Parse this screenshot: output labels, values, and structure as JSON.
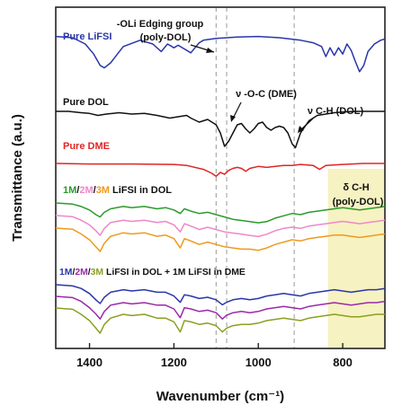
{
  "chart_data": {
    "type": "line",
    "xlabel": "Wavenumber (cm⁻¹)",
    "ylabel": "Transmittance (a.u.)",
    "xlim": [
      1480,
      700
    ],
    "xticks": [
      1400,
      1200,
      1000,
      800
    ],
    "x_reversed": true,
    "grid": false,
    "reference_lines_x": [
      1100,
      1075,
      915
    ],
    "highlight_region": {
      "x": [
        835,
        700
      ],
      "label": "δ C-H (poly-DOL)",
      "color": "#f6f2c2"
    },
    "labels": {
      "pure_lifsi": "Pure LiFSI",
      "pure_dol": "Pure DOL",
      "pure_dme": "Pure DME",
      "group_dol": {
        "c1": "1M",
        "s1": "/",
        "c2": "2M",
        "s2": "/",
        "c3": "3M",
        "rest": " LiFSI in DOL"
      },
      "group_mix": {
        "c1": "1M",
        "s1": "/",
        "c2": "2M",
        "s2": "/",
        "c3": "3M",
        "rest": " LiFSI in DOL + 1M LiFSI in DME"
      },
      "ann_oli_line1": "-OLi Edging group",
      "ann_oli_line2": "(poly-DOL)",
      "ann_voc": "ν -O-C (DME)",
      "ann_vch": "ν C-H (DOL)",
      "ann_dch_line1": "δ C-H",
      "ann_dch_line2": "(poly-DOL)"
    },
    "colors": {
      "pure_lifsi": "#2a36a8",
      "pure_dol": "#111111",
      "pure_dme": "#e02525",
      "m1_dol": "#2c9a2c",
      "m2_dol": "#ee88c8",
      "m3_dol": "#ee9a20",
      "m1_mix": "#2a36a8",
      "m2_mix": "#9a2aa8",
      "m3_mix": "#8aa020"
    },
    "series": [
      {
        "name": "Pure LiFSI",
        "key": "pure_lifsi",
        "baseline": 0.1,
        "x": [
          1480,
          1440,
          1410,
          1390,
          1375,
          1365,
          1350,
          1320,
          1280,
          1250,
          1230,
          1215,
          1200,
          1190,
          1160,
          1150,
          1140,
          1130,
          1100,
          1050,
          1000,
          950,
          900,
          870,
          850,
          840,
          830,
          820,
          810,
          800,
          790,
          780,
          770,
          760,
          750,
          740,
          725,
          710,
          700
        ],
        "y": [
          0,
          0.1,
          0.6,
          1.4,
          2.3,
          2.5,
          2.1,
          0.8,
          0.3,
          0.6,
          1.2,
          0.6,
          0.9,
          0.7,
          1.3,
          0.9,
          0.5,
          0.3,
          0.15,
          0.05,
          0,
          0.1,
          0.3,
          0.5,
          0.8,
          1.6,
          0.9,
          1.5,
          0.9,
          1.4,
          0.6,
          1.1,
          2.0,
          2.8,
          2.3,
          1.2,
          0.6,
          0.3,
          0.2
        ]
      },
      {
        "name": "Pure DOL",
        "key": "pure_dol",
        "baseline": 0,
        "x": [
          1480,
          1450,
          1420,
          1400,
          1380,
          1360,
          1330,
          1300,
          1270,
          1240,
          1210,
          1190,
          1170,
          1160,
          1140,
          1120,
          1100,
          1090,
          1080,
          1070,
          1060,
          1050,
          1040,
          1030,
          1020,
          1010,
          1000,
          990,
          980,
          970,
          960,
          950,
          940,
          930,
          920,
          912,
          900,
          880,
          860,
          840,
          820,
          800,
          780,
          760,
          740,
          720,
          700
        ],
        "y": [
          0,
          0,
          0.1,
          0.15,
          0.3,
          0.2,
          0.1,
          0.2,
          0.15,
          0.3,
          0.5,
          0.4,
          0.3,
          0.5,
          0.8,
          0.6,
          1.0,
          1.6,
          2.6,
          2.2,
          1.6,
          1.0,
          0.9,
          1.3,
          1.6,
          1.3,
          0.9,
          0.8,
          1.2,
          1.4,
          1.2,
          1.1,
          1.2,
          1.6,
          2.4,
          2.7,
          1.6,
          0.7,
          0.3,
          0.2,
          0.1,
          0.05,
          0.02,
          0,
          0,
          0,
          0
        ]
      },
      {
        "name": "Pure DME",
        "key": "pure_dme",
        "baseline": 0,
        "x": [
          1480,
          1400,
          1300,
          1200,
          1170,
          1130,
          1110,
          1100,
          1090,
          1080,
          1070,
          1060,
          1050,
          1040,
          1030,
          1020,
          1000,
          980,
          960,
          940,
          920,
          900,
          870,
          855,
          840,
          800,
          750,
          700
        ],
        "y": [
          0,
          0.05,
          0.05,
          0.1,
          0.2,
          0.6,
          1.0,
          1.3,
          0.9,
          1.1,
          0.7,
          0.5,
          0.4,
          0.5,
          0.8,
          0.5,
          0.3,
          0.4,
          0.3,
          0.2,
          0.2,
          0.1,
          0.2,
          0.6,
          0.2,
          0.1,
          0,
          0
        ]
      },
      {
        "name": "1M LiFSI in DOL",
        "key": "m1_dol",
        "baseline": 0,
        "x": [
          1480,
          1440,
          1420,
          1400,
          1385,
          1375,
          1365,
          1350,
          1320,
          1300,
          1270,
          1240,
          1220,
          1200,
          1185,
          1175,
          1160,
          1140,
          1120,
          1100,
          1080,
          1060,
          1040,
          1020,
          1000,
          980,
          960,
          940,
          920,
          900,
          880,
          860,
          840,
          820,
          800,
          780,
          760,
          740,
          720,
          700
        ],
        "y": [
          0,
          0.1,
          0.3,
          0.6,
          1.0,
          1.2,
          0.8,
          0.5,
          0.3,
          0.4,
          0.3,
          0.5,
          0.4,
          0.6,
          0.9,
          0.5,
          0.7,
          0.9,
          0.8,
          1.0,
          1.2,
          1.4,
          1.5,
          1.6,
          1.7,
          1.6,
          1.3,
          1.1,
          0.9,
          1.0,
          0.8,
          0.7,
          0.6,
          0.5,
          0.4,
          0.5,
          0.6,
          0.5,
          0.4,
          0.3
        ]
      },
      {
        "name": "2M LiFSI in DOL",
        "key": "m2_dol",
        "baseline": 0,
        "x": [
          1480,
          1440,
          1420,
          1400,
          1385,
          1375,
          1365,
          1350,
          1320,
          1300,
          1270,
          1240,
          1220,
          1200,
          1185,
          1175,
          1160,
          1140,
          1120,
          1100,
          1080,
          1060,
          1040,
          1020,
          1000,
          980,
          960,
          940,
          920,
          900,
          880,
          860,
          840,
          820,
          800,
          780,
          760,
          740,
          720,
          700
        ],
        "y": [
          0,
          0.1,
          0.4,
          0.8,
          1.3,
          1.7,
          1.1,
          0.6,
          0.4,
          0.5,
          0.4,
          0.6,
          0.5,
          0.8,
          1.4,
          0.7,
          0.9,
          1.2,
          1.0,
          1.2,
          1.4,
          1.5,
          1.6,
          1.7,
          1.8,
          1.6,
          1.3,
          1.1,
          1.0,
          1.1,
          0.9,
          0.8,
          0.7,
          0.6,
          0.5,
          0.6,
          0.7,
          0.6,
          0.5,
          0.4
        ]
      },
      {
        "name": "3M LiFSI in DOL",
        "key": "m3_dol",
        "baseline": 0,
        "x": [
          1480,
          1440,
          1420,
          1400,
          1385,
          1375,
          1365,
          1350,
          1320,
          1300,
          1270,
          1240,
          1220,
          1200,
          1185,
          1175,
          1160,
          1140,
          1120,
          1100,
          1080,
          1060,
          1040,
          1020,
          1000,
          980,
          960,
          940,
          920,
          900,
          880,
          860,
          840,
          820,
          800,
          780,
          760,
          740,
          720,
          700
        ],
        "y": [
          0,
          0.1,
          0.5,
          1.0,
          1.6,
          2.0,
          1.3,
          0.7,
          0.4,
          0.5,
          0.4,
          0.7,
          0.6,
          0.9,
          1.7,
          0.9,
          1.1,
          1.4,
          1.2,
          1.4,
          1.6,
          1.7,
          1.8,
          1.8,
          1.9,
          1.7,
          1.4,
          1.2,
          1.0,
          1.1,
          0.9,
          0.8,
          0.7,
          0.6,
          0.6,
          0.7,
          0.8,
          0.7,
          0.6,
          0.5
        ]
      },
      {
        "name": "1M LiFSI in DOL + 1M LiFSI in DME",
        "key": "m1_mix",
        "baseline": 0,
        "x": [
          1480,
          1440,
          1420,
          1400,
          1385,
          1375,
          1365,
          1350,
          1320,
          1300,
          1270,
          1240,
          1220,
          1200,
          1185,
          1175,
          1160,
          1140,
          1120,
          1100,
          1085,
          1075,
          1060,
          1040,
          1020,
          1000,
          980,
          960,
          940,
          920,
          900,
          880,
          860,
          840,
          820,
          800,
          780,
          760,
          740,
          720,
          700
        ],
        "y": [
          0,
          0.1,
          0.3,
          0.7,
          1.2,
          1.5,
          1.0,
          0.6,
          0.4,
          0.5,
          0.4,
          0.6,
          0.6,
          0.9,
          1.4,
          0.8,
          0.9,
          1.1,
          1.0,
          1.2,
          1.6,
          1.4,
          1.2,
          1.1,
          1.2,
          1.1,
          0.9,
          0.8,
          0.7,
          0.8,
          0.9,
          0.7,
          0.6,
          0.5,
          0.4,
          0.5,
          0.6,
          0.5,
          0.4,
          0.4,
          0.3
        ]
      },
      {
        "name": "2M LiFSI in DOL + 1M LiFSI in DME",
        "key": "m2_mix",
        "baseline": 0,
        "x": [
          1480,
          1440,
          1420,
          1400,
          1385,
          1375,
          1365,
          1350,
          1320,
          1300,
          1270,
          1240,
          1220,
          1200,
          1185,
          1175,
          1160,
          1140,
          1120,
          1100,
          1085,
          1075,
          1060,
          1040,
          1020,
          1000,
          980,
          960,
          940,
          920,
          900,
          880,
          860,
          840,
          820,
          800,
          780,
          760,
          740,
          720,
          700
        ],
        "y": [
          0,
          0.1,
          0.4,
          0.9,
          1.4,
          1.8,
          1.2,
          0.7,
          0.5,
          0.6,
          0.5,
          0.7,
          0.7,
          1.0,
          1.7,
          0.9,
          1.0,
          1.2,
          1.1,
          1.3,
          1.8,
          1.5,
          1.3,
          1.2,
          1.3,
          1.2,
          1.0,
          0.9,
          0.8,
          0.9,
          1.0,
          0.8,
          0.7,
          0.6,
          0.5,
          0.6,
          0.7,
          0.6,
          0.5,
          0.5,
          0.4
        ]
      },
      {
        "name": "3M LiFSI in DOL + 1M LiFSI in DME",
        "key": "m3_mix",
        "baseline": 0,
        "x": [
          1480,
          1440,
          1420,
          1400,
          1385,
          1375,
          1365,
          1350,
          1320,
          1300,
          1270,
          1240,
          1220,
          1200,
          1185,
          1175,
          1160,
          1140,
          1120,
          1100,
          1085,
          1075,
          1060,
          1040,
          1020,
          1000,
          980,
          960,
          940,
          920,
          900,
          880,
          860,
          840,
          820,
          800,
          780,
          760,
          740,
          720,
          700
        ],
        "y": [
          0,
          0.1,
          0.5,
          1.0,
          1.6,
          2.0,
          1.3,
          0.8,
          0.5,
          0.6,
          0.5,
          0.8,
          0.8,
          1.1,
          1.9,
          1.0,
          1.1,
          1.3,
          1.2,
          1.4,
          1.9,
          1.6,
          1.4,
          1.3,
          1.3,
          1.2,
          1.0,
          0.9,
          0.8,
          0.9,
          1.0,
          0.8,
          0.7,
          0.6,
          0.5,
          0.6,
          0.7,
          0.7,
          0.6,
          0.5,
          0.5
        ]
      }
    ]
  }
}
